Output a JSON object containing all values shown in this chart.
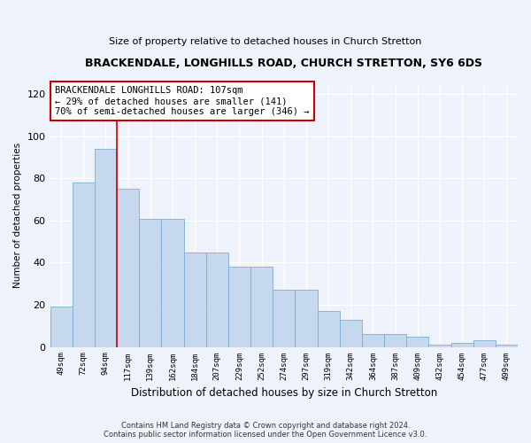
{
  "title": "BRACKENDALE, LONGHILLS ROAD, CHURCH STRETTON, SY6 6DS",
  "subtitle": "Size of property relative to detached houses in Church Stretton",
  "xlabel": "Distribution of detached houses by size in Church Stretton",
  "ylabel": "Number of detached properties",
  "categories": [
    "49sqm",
    "72sqm",
    "94sqm",
    "117sqm",
    "139sqm",
    "162sqm",
    "184sqm",
    "207sqm",
    "229sqm",
    "252sqm",
    "274sqm",
    "297sqm",
    "319sqm",
    "342sqm",
    "364sqm",
    "387sqm",
    "409sqm",
    "432sqm",
    "454sqm",
    "477sqm",
    "499sqm"
  ],
  "values": [
    19,
    78,
    94,
    75,
    61,
    61,
    45,
    45,
    38,
    38,
    27,
    27,
    17,
    13,
    6,
    6,
    5,
    1,
    2,
    3,
    1
  ],
  "bar_color": "#c5d8ee",
  "bar_edge_color": "#7aafd4",
  "vline_x_index": 3,
  "vline_color": "#cc0000",
  "annotation_title": "BRACKENDALE LONGHILLS ROAD: 107sqm",
  "annotation_line1": "← 29% of detached houses are smaller (141)",
  "annotation_line2": "70% of semi-detached houses are larger (346) →",
  "annotation_box_color": "#ffffff",
  "annotation_box_edge": "#cc0000",
  "ylim": [
    0,
    125
  ],
  "yticks": [
    0,
    20,
    40,
    60,
    80,
    100,
    120
  ],
  "footer1": "Contains HM Land Registry data © Crown copyright and database right 2024.",
  "footer2": "Contains public sector information licensed under the Open Government Licence v3.0.",
  "bg_color": "#eef2fb",
  "plot_bg_color": "#eef2fb",
  "grid_color": "#ffffff"
}
